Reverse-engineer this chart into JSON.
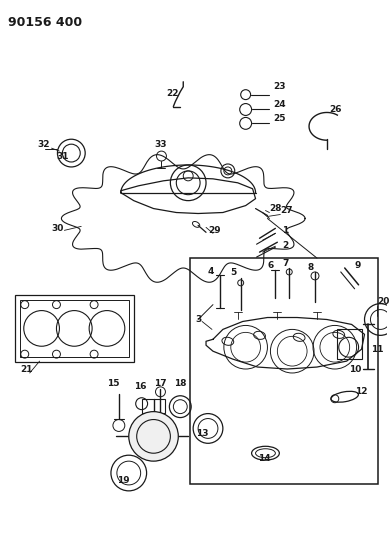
{
  "title": "90156 400",
  "bg_color": "#ffffff",
  "lc": "#1a1a1a",
  "figsize": [
    3.91,
    5.33
  ],
  "dpi": 100,
  "title_fs": 9,
  "label_fs": 6.5
}
